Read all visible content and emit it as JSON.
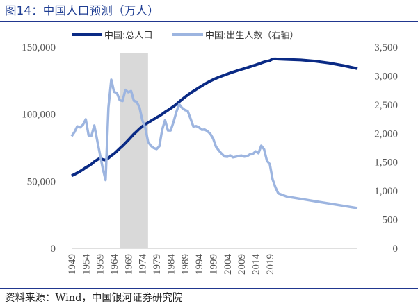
{
  "title": "图14：中国人口预测（万人）",
  "source": "资料来源：Wind，中国银河证券研究院",
  "colors": {
    "population": "#0A2A85",
    "births": "#9DB5E0",
    "shade": "#D9D9D9",
    "rule": "#21378F"
  },
  "chart_data": {
    "type": "line",
    "xlim": [
      1949,
      2050
    ],
    "x_ticks": [
      1949,
      1954,
      1959,
      1964,
      1969,
      1974,
      1979,
      1984,
      1989,
      1994,
      1999,
      2004,
      2009,
      2014,
      2019
    ],
    "x_tick_labels": [
      "1949",
      "1954",
      "1959",
      "1964",
      "1969",
      "1974",
      "1979",
      "1984",
      "1989",
      "1994",
      "1999",
      "2004",
      "2009",
      "2014",
      "2019"
    ],
    "ylim_left": [
      0,
      150000
    ],
    "y_ticks_left": [
      0,
      50000,
      100000,
      150000
    ],
    "y_tick_labels_left": [
      "0",
      "50,000",
      "100,000",
      "150,000"
    ],
    "ylim_right": [
      0,
      3500
    ],
    "y_ticks_right": [
      0,
      500,
      1000,
      1500,
      2000,
      2500,
      3000,
      3500
    ],
    "y_tick_labels_right": [
      "0",
      "500",
      "1,000",
      "1,500",
      "2,000",
      "2,500",
      "3,000",
      "3,500"
    ],
    "shaded_range": [
      1966,
      1976
    ],
    "legend": [
      "中国:总人口",
      "中国:出生人数（右轴）"
    ],
    "series": [
      {
        "name": "中国:总人口",
        "axis": "left",
        "x": [
          1949,
          1950,
          1951,
          1952,
          1953,
          1954,
          1955,
          1956,
          1957,
          1958,
          1959,
          1960,
          1961,
          1962,
          1963,
          1964,
          1965,
          1966,
          1967,
          1968,
          1969,
          1970,
          1971,
          1972,
          1973,
          1974,
          1975,
          1976,
          1977,
          1978,
          1979,
          1980,
          1981,
          1982,
          1983,
          1984,
          1985,
          1986,
          1987,
          1988,
          1989,
          1990,
          1991,
          1992,
          1993,
          1994,
          1995,
          1996,
          1997,
          1998,
          1999,
          2000,
          2001,
          2002,
          2003,
          2004,
          2005,
          2006,
          2007,
          2008,
          2009,
          2010,
          2011,
          2012,
          2013,
          2014,
          2015,
          2016,
          2017,
          2018,
          2019,
          2020,
          2021,
          2022,
          2025,
          2030,
          2035,
          2040,
          2045,
          2050
        ],
        "values": [
          54167,
          55196,
          56300,
          57482,
          58796,
          60266,
          61465,
          62828,
          64653,
          65994,
          67207,
          66207,
          65859,
          67295,
          69172,
          70499,
          72538,
          74542,
          76368,
          78534,
          80671,
          82992,
          85229,
          87177,
          89211,
          90859,
          92420,
          93717,
          94974,
          96259,
          97542,
          98705,
          100072,
          101654,
          103008,
          104357,
          105851,
          107507,
          109300,
          111026,
          112704,
          114333,
          115823,
          117171,
          118517,
          119850,
          121121,
          122389,
          123626,
          124761,
          125786,
          126743,
          127627,
          128453,
          129227,
          129988,
          130756,
          131448,
          132129,
          132802,
          133450,
          134091,
          134735,
          135404,
          136072,
          136782,
          137462,
          138271,
          139008,
          139538,
          140005,
          141212,
          141260,
          141175,
          140900,
          140500,
          139600,
          138200,
          136300,
          134000
        ]
      },
      {
        "name": "中国:出生人数（右轴）",
        "axis": "right",
        "x": [
          1949,
          1950,
          1951,
          1952,
          1953,
          1954,
          1955,
          1956,
          1957,
          1958,
          1959,
          1960,
          1961,
          1962,
          1963,
          1964,
          1965,
          1966,
          1967,
          1968,
          1969,
          1970,
          1971,
          1972,
          1973,
          1974,
          1975,
          1976,
          1977,
          1978,
          1979,
          1980,
          1981,
          1982,
          1983,
          1984,
          1985,
          1986,
          1987,
          1988,
          1989,
          1990,
          1991,
          1992,
          1993,
          1994,
          1995,
          1996,
          1997,
          1998,
          1999,
          2000,
          2001,
          2002,
          2003,
          2004,
          2005,
          2006,
          2007,
          2008,
          2009,
          2010,
          2011,
          2012,
          2013,
          2014,
          2015,
          2016,
          2017,
          2018,
          2019,
          2020,
          2021,
          2022,
          2025,
          2030,
          2035,
          2040,
          2045,
          2050
        ],
        "values": [
          1950,
          2023,
          2122,
          2105,
          2151,
          2245,
          1965,
          1961,
          2138,
          1889,
          1635,
          1389,
          1187,
          2451,
          2934,
          2721,
          2704,
          2577,
          2563,
          2757,
          2715,
          2736,
          2567,
          2550,
          2447,
          2226,
          2102,
          1853,
          1786,
          1745,
          1727,
          1776,
          2064,
          2230,
          2052,
          2050,
          2196,
          2374,
          2508,
          2445,
          2407,
          2391,
          2258,
          2119,
          2126,
          2104,
          2063,
          2067,
          2038,
          1991,
          1909,
          1771,
          1702,
          1647,
          1599,
          1593,
          1617,
          1584,
          1594,
          1608,
          1615,
          1596,
          1604,
          1635,
          1640,
          1687,
          1655,
          1786,
          1723,
          1523,
          1465,
          1202,
          1062,
          956,
          900,
          860,
          820,
          780,
          740,
          700
        ]
      }
    ]
  }
}
